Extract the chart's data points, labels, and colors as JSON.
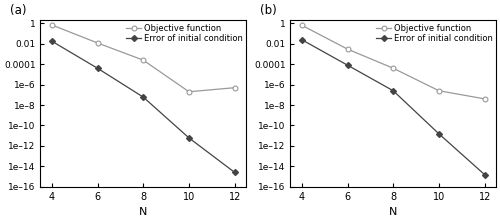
{
  "N": [
    4,
    6,
    8,
    10,
    12
  ],
  "panel_a": {
    "label": "(a)",
    "obj_func": [
      0.7,
      0.012,
      0.00025,
      2e-07,
      5e-07
    ],
    "err_init": [
      0.018,
      4e-05,
      6e-08,
      6e-12,
      2.5e-15
    ]
  },
  "panel_b": {
    "label": "(b)",
    "obj_func": [
      0.65,
      0.003,
      4e-05,
      2.5e-07,
      4e-08
    ],
    "err_init": [
      0.025,
      8e-05,
      2.5e-07,
      1.5e-11,
      1.5e-15
    ]
  },
  "legend_obj": "Objective function",
  "legend_err": "Error of initial condition",
  "xlabel": "N",
  "ylim_bottom": 1e-16,
  "ylim_top": 2.0,
  "color_obj": "#999999",
  "color_err": "#444444",
  "xticks": [
    4,
    6,
    8,
    10,
    12
  ],
  "yticks": [
    1e-16,
    1e-14,
    1e-12,
    1e-10,
    1e-08,
    1e-06,
    0.0001,
    0.01,
    1.0
  ],
  "ytick_labels": [
    "1e–16",
    "1e–14",
    "1e–12",
    "1e–10",
    "1e–8",
    "1e–6",
    "0.0001",
    "0.01",
    "1"
  ],
  "fig_width": 5.0,
  "fig_height": 2.21,
  "dpi": 100
}
